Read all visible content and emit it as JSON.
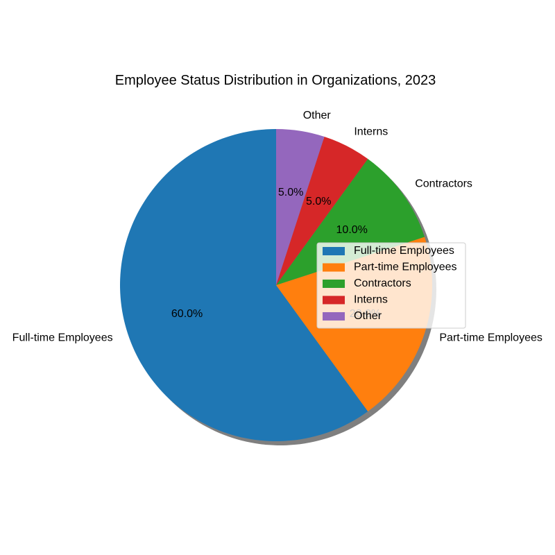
{
  "chart_data": {
    "type": "pie",
    "title": "Employee Status Distribution in Organizations, 2023",
    "categories": [
      "Full-time Employees",
      "Part-time Employees",
      "Contractors",
      "Interns",
      "Other"
    ],
    "values": [
      60,
      20,
      10,
      5,
      5
    ],
    "percent_labels": [
      "60.0%",
      "20.0%",
      "10.0%",
      "5.0%",
      "5.0%"
    ],
    "colors": [
      "#1f77b4",
      "#ff7f0e",
      "#2ca02c",
      "#d62728",
      "#9467bd"
    ],
    "start_angle_deg": 90,
    "direction": "counterclockwise",
    "shadow": true,
    "legend": {
      "placement": "center-right",
      "entries": [
        "Full-time Employees",
        "Part-time Employees",
        "Contractors",
        "Interns",
        "Other"
      ]
    }
  }
}
